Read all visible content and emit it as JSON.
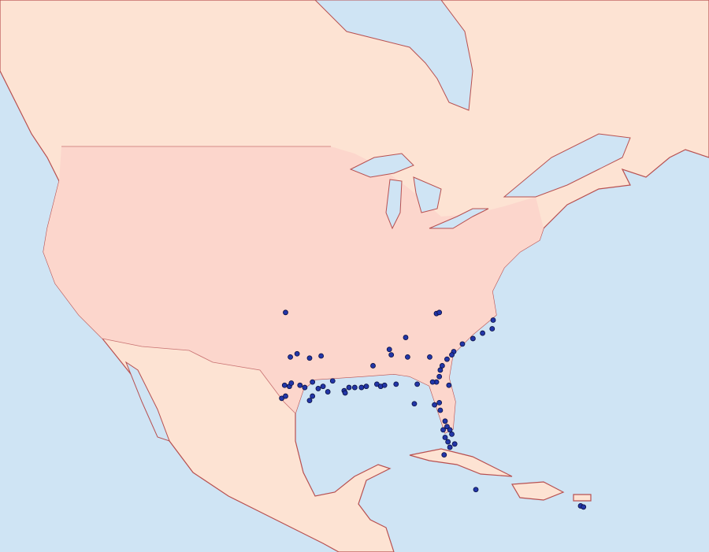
{
  "map": {
    "colors": {
      "water": "#cfe4f4",
      "land": "#fde3d3",
      "usa": "#fcd6cc",
      "coast": "#b85050",
      "record_dot": "#2236a8"
    },
    "records_lonlat": [
      [
        -98.4,
        35.7
      ],
      [
        -82.7,
        35.6
      ],
      [
        -82.4,
        35.7
      ],
      [
        -76.8,
        35.0
      ],
      [
        -76.9,
        34.2
      ],
      [
        -77.9,
        33.8
      ],
      [
        -78.9,
        33.3
      ],
      [
        -80.0,
        32.8
      ],
      [
        -80.9,
        32.1
      ],
      [
        -81.1,
        31.8
      ],
      [
        -81.6,
        31.4
      ],
      [
        -82.1,
        30.8
      ],
      [
        -82.3,
        30.4
      ],
      [
        -82.4,
        29.8
      ],
      [
        -82.7,
        29.3
      ],
      [
        -97.9,
        31.6
      ],
      [
        -97.2,
        31.9
      ],
      [
        -95.9,
        31.5
      ],
      [
        -94.7,
        31.7
      ],
      [
        -85.9,
        33.4
      ],
      [
        -87.6,
        32.3
      ],
      [
        -87.4,
        31.8
      ],
      [
        -85.7,
        31.6
      ],
      [
        -83.4,
        31.6
      ],
      [
        -89.3,
        30.8
      ],
      [
        -98.5,
        29.0
      ],
      [
        -98.0,
        28.9
      ],
      [
        -97.8,
        29.2
      ],
      [
        -96.9,
        29.0
      ],
      [
        -96.4,
        28.8
      ],
      [
        -95.6,
        29.3
      ],
      [
        -95.0,
        28.7
      ],
      [
        -94.5,
        28.9
      ],
      [
        -93.5,
        29.4
      ],
      [
        -94.0,
        28.4
      ],
      [
        -92.3,
        28.5
      ],
      [
        -91.8,
        28.8
      ],
      [
        -91.2,
        28.8
      ],
      [
        -90.5,
        28.8
      ],
      [
        -90.0,
        28.9
      ],
      [
        -88.9,
        29.1
      ],
      [
        -88.5,
        28.9
      ],
      [
        -88.1,
        29.0
      ],
      [
        -86.9,
        29.1
      ],
      [
        -84.7,
        29.1
      ],
      [
        -83.1,
        29.3
      ],
      [
        -81.4,
        29.0
      ],
      [
        -98.8,
        27.8
      ],
      [
        -98.4,
        28.0
      ],
      [
        -95.9,
        27.6
      ],
      [
        -95.6,
        28.0
      ],
      [
        -92.2,
        28.3
      ],
      [
        -85.0,
        27.3
      ],
      [
        -82.9,
        27.2
      ],
      [
        -82.4,
        27.4
      ],
      [
        -82.3,
        26.7
      ],
      [
        -81.8,
        25.7
      ],
      [
        -81.6,
        25.2
      ],
      [
        -82.0,
        24.9
      ],
      [
        -81.3,
        24.9
      ],
      [
        -81.1,
        24.5
      ],
      [
        -81.8,
        24.2
      ],
      [
        -81.5,
        23.8
      ],
      [
        -81.3,
        23.3
      ],
      [
        -80.8,
        23.6
      ],
      [
        -81.9,
        22.6
      ],
      [
        -78.6,
        19.4
      ],
      [
        -67.7,
        17.9
      ],
      [
        -67.4,
        17.8
      ]
    ]
  }
}
